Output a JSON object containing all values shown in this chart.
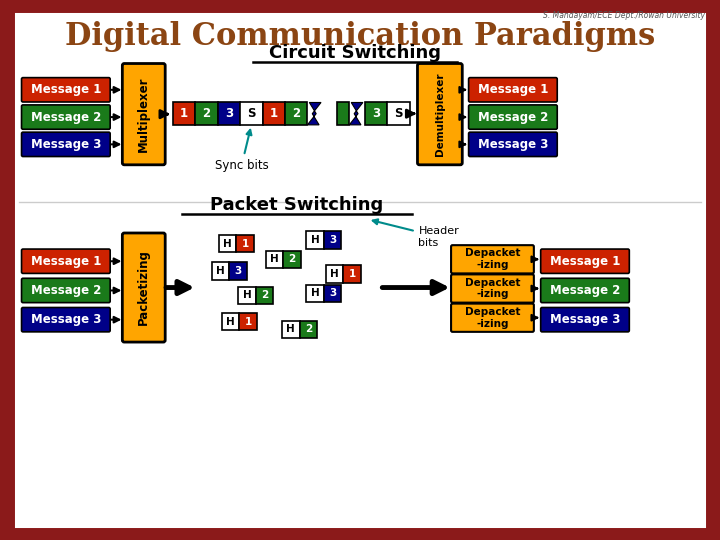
{
  "title": "Digital Communication Paradigms",
  "watermark": "S. Mandayam/ECE Dept./Rowan University",
  "bg_outer": "#8B1A1A",
  "bg_inner": "#FFFFFF",
  "title_color": "#8B4513",
  "orange": "#FFA500",
  "red": "#CC2200",
  "green": "#1A7A1A",
  "blue": "#000088",
  "white": "#FFFFFF",
  "black": "#000000",
  "teal": "#008B8B",
  "cs_label": "Circuit Switching",
  "ps_label": "Packet Switching",
  "sync_label": "Sync bits",
  "header_label": "Header\nbits",
  "mux_label": "Multiplexer",
  "demux_label": "Demultiplexer",
  "pack_label": "Packetizing",
  "depack_label": "Depacket\n-izing",
  "messages": [
    "Message 1",
    "Message 2",
    "Message 3"
  ],
  "msg_colors": [
    "#CC2200",
    "#1A7A1A",
    "#000088"
  ]
}
